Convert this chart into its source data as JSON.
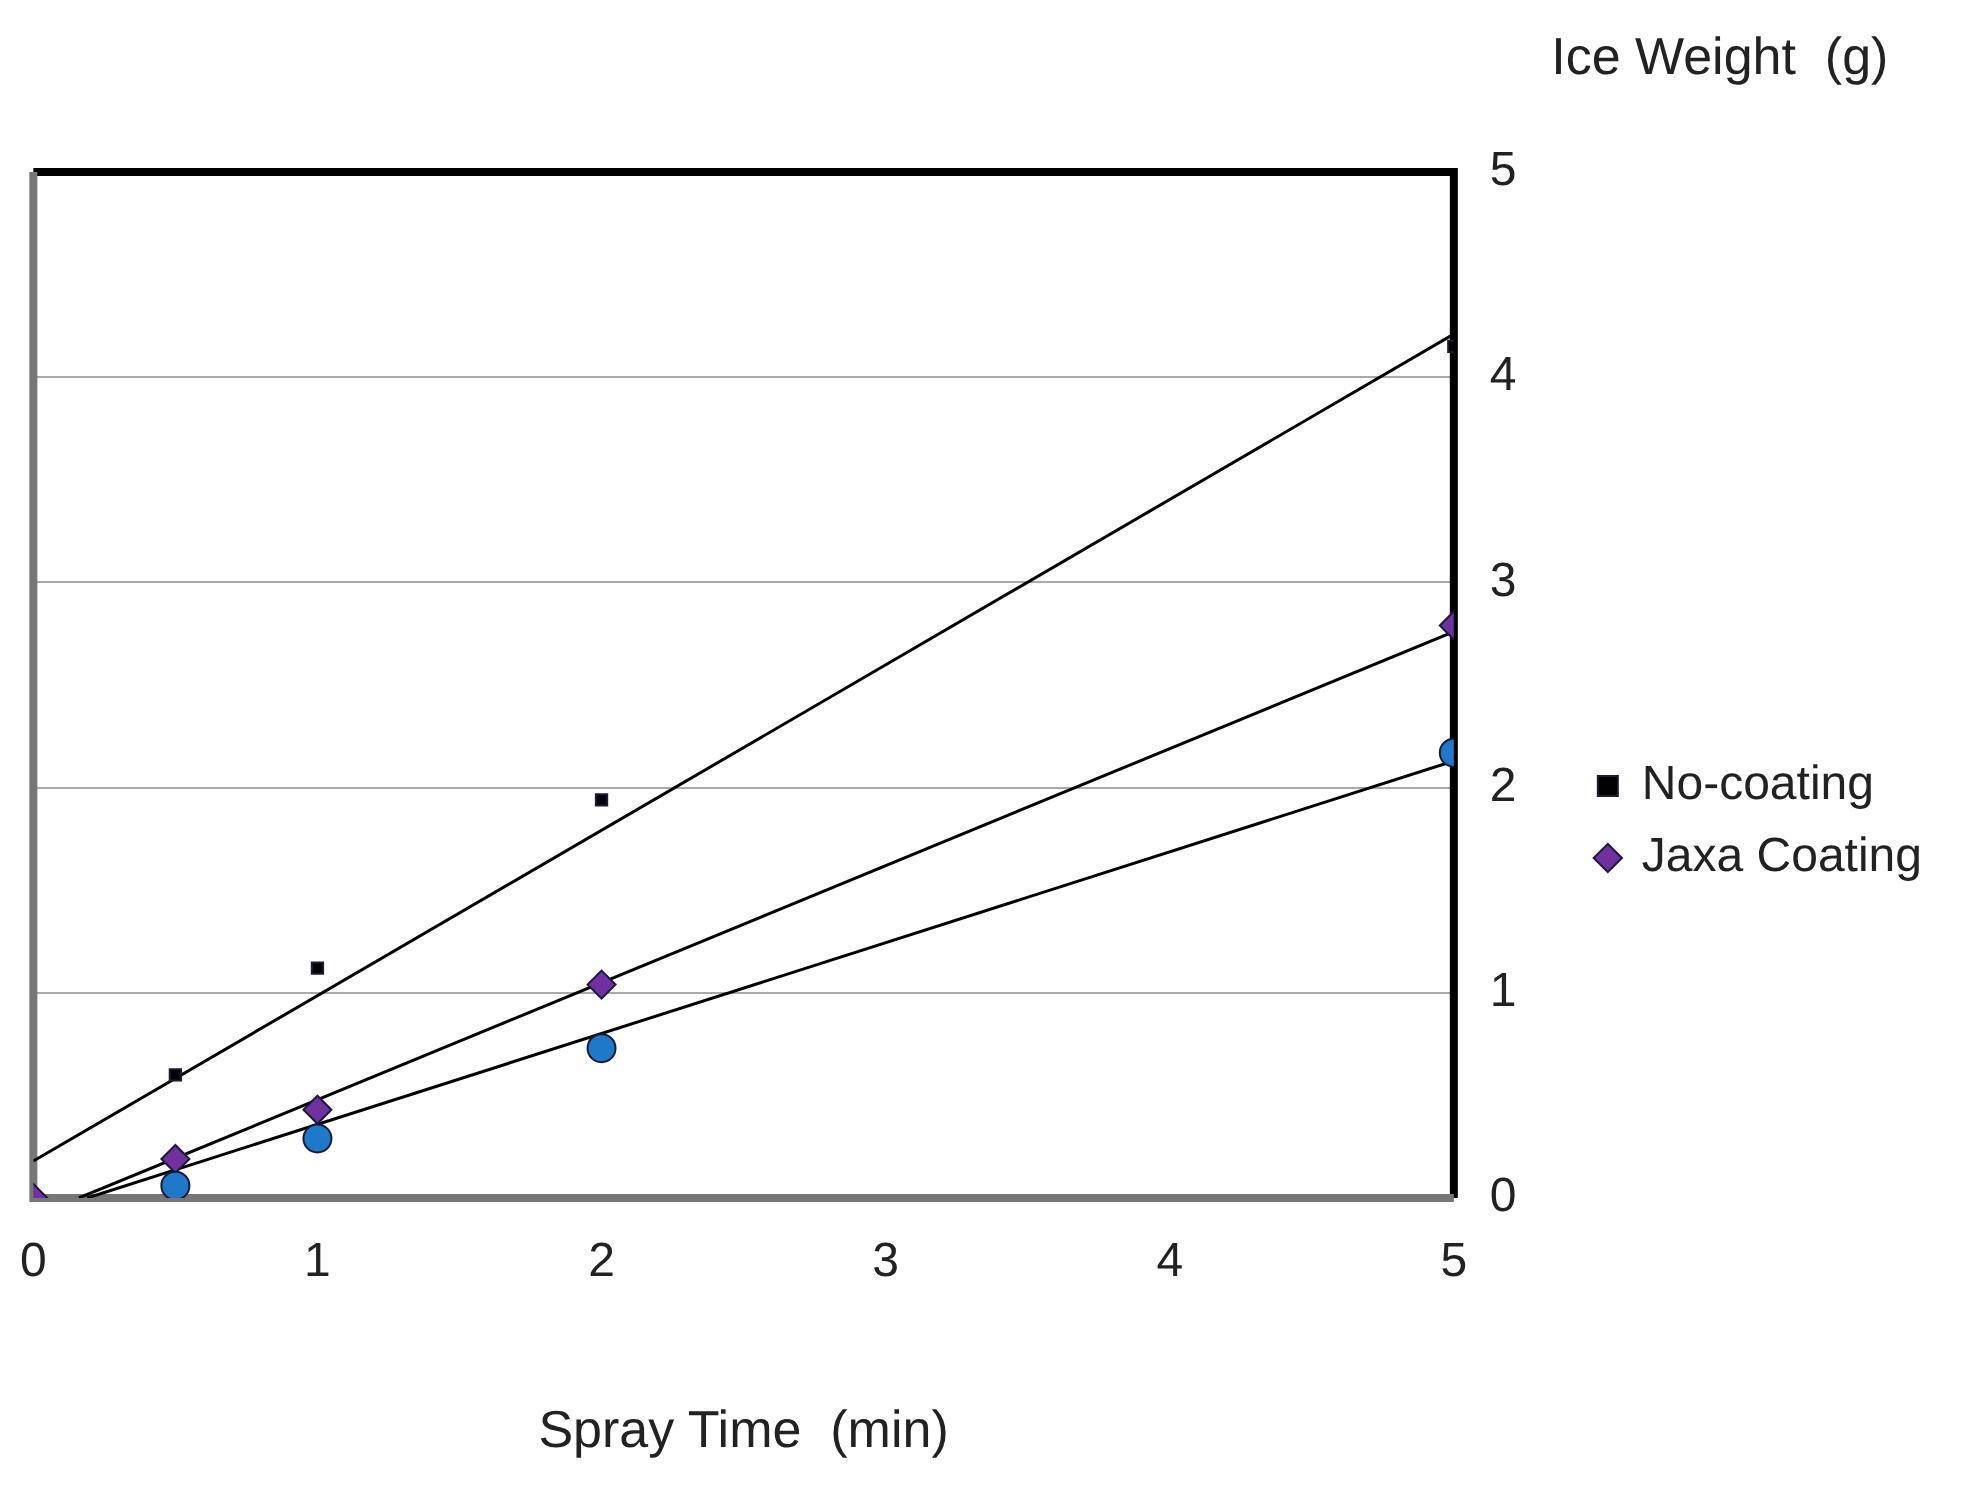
{
  "chart_data": {
    "type": "scatter",
    "xlabel": "Spray Time  (min)",
    "ylabel": "Ice Weight  (g)",
    "xlim": [
      0,
      5
    ],
    "xticks": [
      0,
      1,
      2,
      3,
      4,
      5
    ],
    "ylim": [
      0,
      5
    ],
    "yticks": [
      0,
      1,
      2,
      3,
      4,
      5
    ],
    "grid": "y",
    "legend": "right",
    "series": [
      {
        "name": "No-coating",
        "type": "scatter",
        "marker": "square",
        "color": "#000000",
        "x": [
          0.5,
          1,
          2,
          5
        ],
        "values": [
          0.6,
          1.12,
          1.94,
          4.15
        ]
      },
      {
        "type": "scatter",
        "marker": "circle",
        "color": "#1f78c8",
        "x": [
          0.5,
          1,
          2,
          5
        ],
        "values": [
          0.06,
          0.29,
          0.73,
          2.17
        ]
      },
      {
        "name": "Jaxa Coating",
        "type": "scatter",
        "marker": "diamond",
        "color": "#7030a0",
        "x": [
          0,
          0.5,
          1,
          2,
          5
        ],
        "values": [
          0,
          0.19,
          0.43,
          1.04,
          2.79
        ]
      },
      {
        "type": "line",
        "marker": "none",
        "color": "#000000",
        "x": [
          0,
          5
        ],
        "values": [
          0.18,
          4.21
        ]
      },
      {
        "type": "line",
        "marker": "none",
        "color": "#000000",
        "x": [
          0.19,
          5
        ],
        "values": [
          0,
          2.13
        ]
      },
      {
        "type": "line",
        "marker": "none",
        "color": "#000000",
        "x": [
          0.16,
          5
        ],
        "values": [
          0,
          2.76
        ]
      }
    ]
  }
}
